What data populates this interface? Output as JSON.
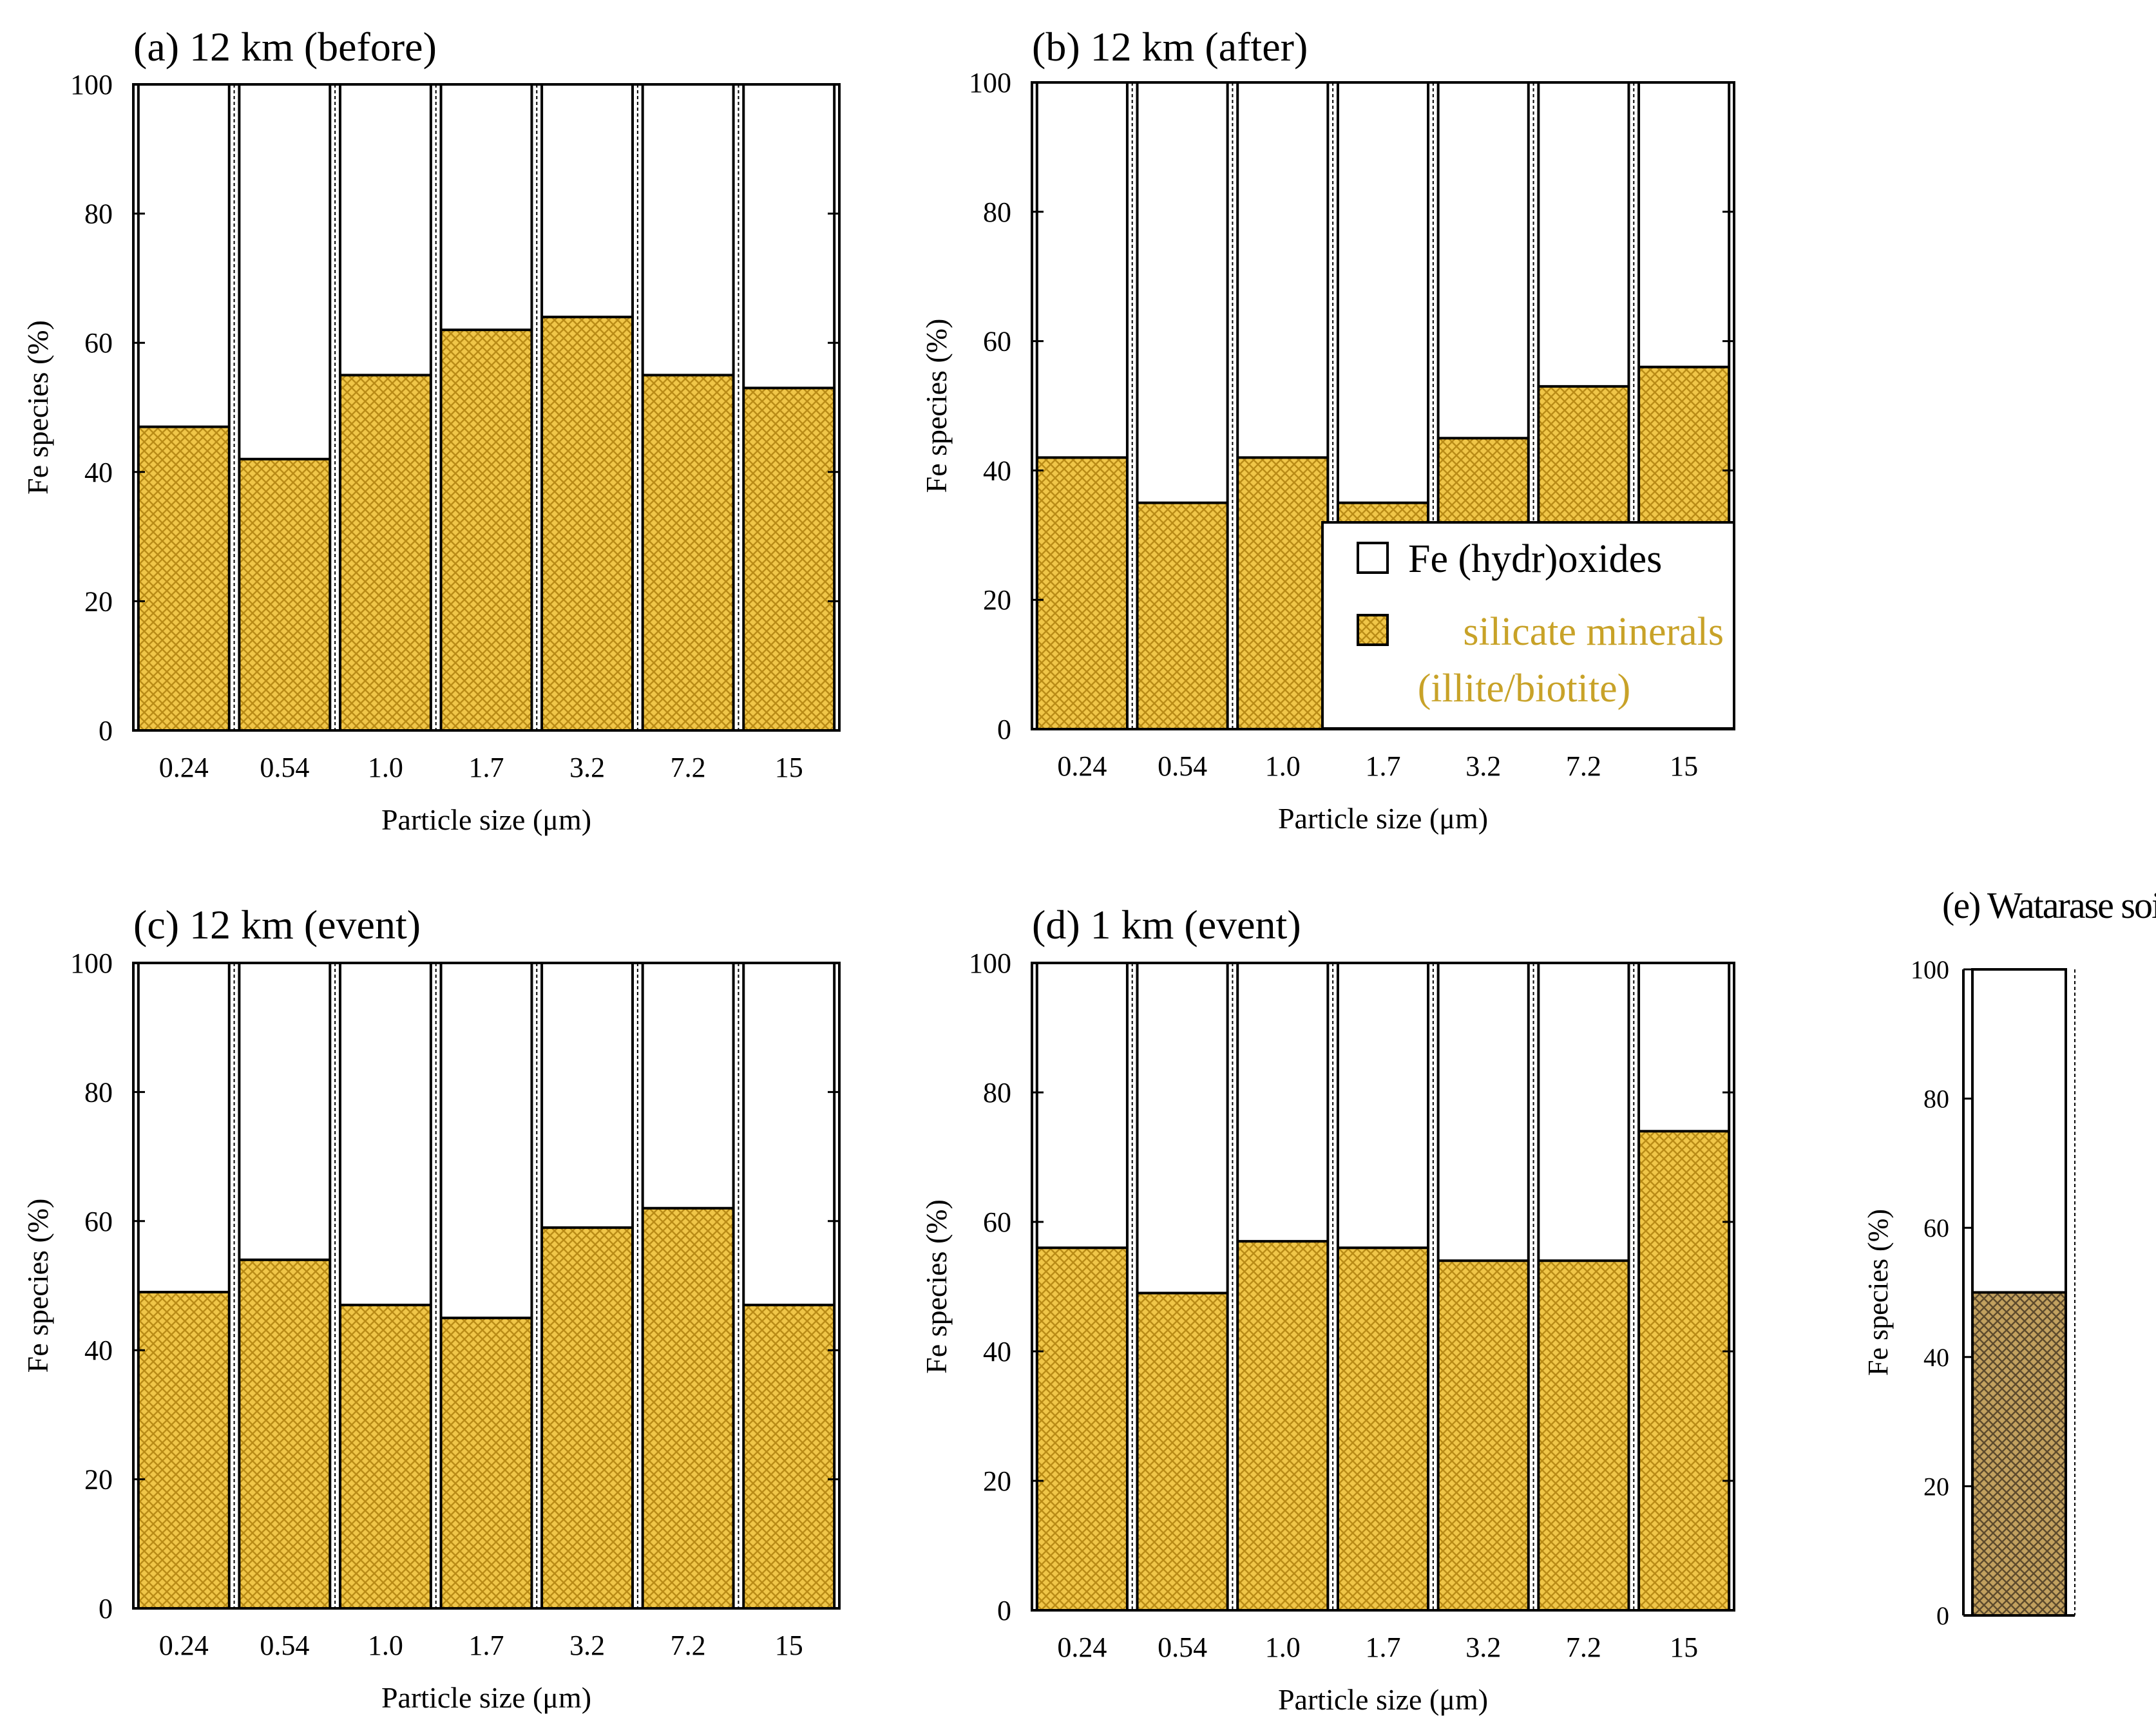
{
  "colors": {
    "silicate_fill": "#f0c648",
    "silicate_hatch": "#b98b16",
    "soil_fill": "#c2a15f",
    "soil_hatch": "#5d4a2c",
    "legend_silicate_text": "#c8a228",
    "oxide_fill": "#ffffff"
  },
  "legend": {
    "oxides_label": "Fe (hydr)oxides",
    "silicate_label_line1": "silicate minerals",
    "silicate_label_line2": "(illite/biotite)"
  },
  "chart_data": [
    {
      "id": "a",
      "type": "bar",
      "stacked": true,
      "title": "(a) 12 km (before)",
      "xlabel": "Particle size (μm)",
      "ylabel": "Fe species (%)",
      "ylim": [
        0,
        100
      ],
      "yticks": [
        "0",
        "20",
        "40",
        "60",
        "80",
        "100"
      ],
      "categories": [
        "0.24",
        "0.54",
        "1.0",
        "1.7",
        "3.2",
        "7.2",
        "15"
      ],
      "series": [
        {
          "name": "silicate minerals (illite/biotite)",
          "values": [
            47,
            42,
            55,
            62,
            64,
            55,
            53
          ]
        },
        {
          "name": "Fe (hydr)oxides",
          "values": [
            53,
            58,
            45,
            38,
            36,
            45,
            47
          ]
        }
      ]
    },
    {
      "id": "b",
      "type": "bar",
      "stacked": true,
      "title": "(b) 12 km (after)",
      "xlabel": "Particle size (μm)",
      "ylabel": "Fe species (%)",
      "ylim": [
        0,
        100
      ],
      "yticks": [
        "0",
        "20",
        "40",
        "60",
        "80",
        "100"
      ],
      "categories": [
        "0.24",
        "0.54",
        "1.0",
        "1.7",
        "3.2",
        "7.2",
        "15"
      ],
      "series": [
        {
          "name": "silicate minerals (illite/biotite)",
          "values": [
            42,
            35,
            42,
            35,
            45,
            53,
            56
          ]
        },
        {
          "name": "Fe (hydr)oxides",
          "values": [
            58,
            65,
            58,
            65,
            55,
            47,
            44
          ]
        }
      ],
      "legend": "bottom-right"
    },
    {
      "id": "c",
      "type": "bar",
      "stacked": true,
      "title": "(c) 12 km (event)",
      "xlabel": "Particle size (μm)",
      "ylabel": "Fe species (%)",
      "ylim": [
        0,
        100
      ],
      "yticks": [
        "0",
        "20",
        "40",
        "60",
        "80",
        "100"
      ],
      "categories": [
        "0.24",
        "0.54",
        "1.0",
        "1.7",
        "3.2",
        "7.2",
        "15"
      ],
      "series": [
        {
          "name": "silicate minerals (illite/biotite)",
          "values": [
            49,
            54,
            47,
            45,
            59,
            62,
            47
          ]
        },
        {
          "name": "Fe (hydr)oxides",
          "values": [
            51,
            46,
            53,
            55,
            41,
            38,
            53
          ]
        }
      ]
    },
    {
      "id": "d",
      "type": "bar",
      "stacked": true,
      "title": "(d) 1 km (event)",
      "xlabel": "Particle size (μm)",
      "ylabel": "Fe species (%)",
      "ylim": [
        0,
        100
      ],
      "yticks": [
        "0",
        "20",
        "40",
        "60",
        "80",
        "100"
      ],
      "categories": [
        "0.24",
        "0.54",
        "1.0",
        "1.7",
        "3.2",
        "7.2",
        "15"
      ],
      "series": [
        {
          "name": "silicate minerals (illite/biotite)",
          "values": [
            56,
            49,
            57,
            56,
            54,
            54,
            74
          ]
        },
        {
          "name": "Fe (hydr)oxides",
          "values": [
            44,
            51,
            43,
            44,
            46,
            46,
            26
          ]
        }
      ]
    },
    {
      "id": "e",
      "type": "bar",
      "stacked": true,
      "title": "(e) Watarase soil",
      "xlabel": "",
      "ylabel": "Fe species (%)",
      "ylim": [
        0,
        100
      ],
      "yticks": [
        "0",
        "20",
        "40",
        "60",
        "80",
        "100"
      ],
      "categories": [
        ""
      ],
      "series": [
        {
          "name": "silicate minerals (illite/biotite)",
          "values": [
            50
          ]
        },
        {
          "name": "Fe (hydr)oxides",
          "values": [
            50
          ]
        }
      ]
    }
  ]
}
